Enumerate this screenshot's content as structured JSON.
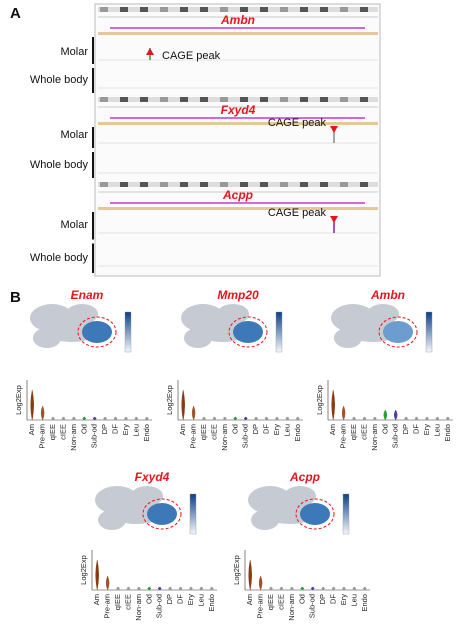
{
  "panel_a": {
    "label": "A",
    "loci": [
      {
        "gene": "Ambn",
        "tracks": [
          "Molar",
          "Whole body"
        ],
        "annotation": "CAGE peak"
      },
      {
        "gene": "Fxyd4",
        "tracks": [
          "Molar",
          "Whole body"
        ],
        "annotation": "CAGE peak"
      },
      {
        "gene": "Acpp",
        "tracks": [
          "Molar",
          "Whole body"
        ],
        "annotation": "CAGE peak"
      }
    ]
  },
  "panel_b": {
    "label": "B",
    "y_label": "Log2Exp",
    "cell_types": [
      "Am",
      "Pre-am",
      "qIEE",
      "cIEE",
      "Non-am",
      "Od",
      "Sub-od",
      "DP",
      "DF",
      "Ery",
      "Leu",
      "Endo"
    ],
    "plots": [
      {
        "gene": "Enam"
      },
      {
        "gene": "Mmp20"
      },
      {
        "gene": "Ambn"
      },
      {
        "gene": "Fxyd4"
      },
      {
        "gene": "Acpp"
      }
    ]
  }
}
